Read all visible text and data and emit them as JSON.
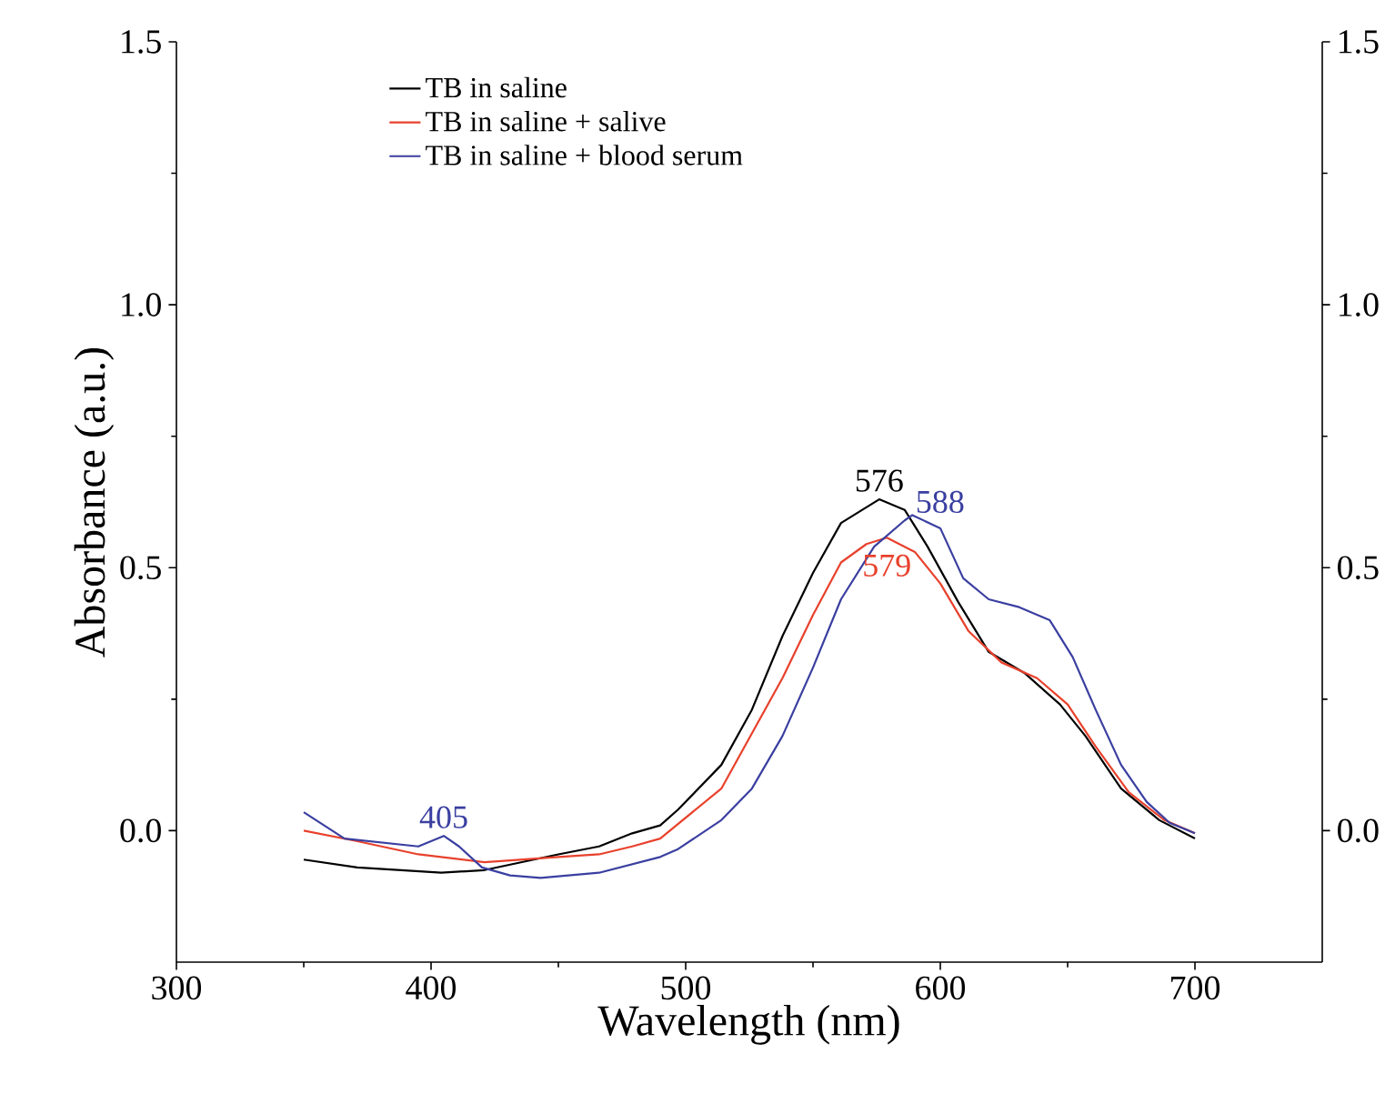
{
  "chart_data": {
    "type": "line",
    "xlabel": "Wavelength (nm)",
    "ylabel": "Absorbance (a.u.)",
    "xlim": [
      300,
      750
    ],
    "xticks": [
      300,
      400,
      500,
      600,
      700
    ],
    "ylim": [
      -0.25,
      1.5
    ],
    "yticks": [
      {
        "value": 0,
        "label": "0.0"
      },
      0.5,
      {
        "value": 1,
        "label": "1.0"
      },
      1.5
    ],
    "y2lim": [
      -0.25,
      1.5
    ],
    "y2ticks": [
      {
        "value": 0,
        "label": "0.0"
      },
      0.5,
      {
        "value": 1,
        "label": "1.0"
      },
      1.5
    ],
    "legend": "top left",
    "marker": "none",
    "line_style": "solid",
    "series": [
      {
        "name": "TB in saline",
        "color": "#000000",
        "x": [
          350,
          371,
          404,
          421,
          450,
          466,
          479,
          490,
          497,
          514,
          526,
          538,
          550,
          561,
          576,
          586,
          595,
          607,
          619,
          633,
          647,
          657,
          671,
          686,
          700
        ],
        "values": [
          -0.055,
          -0.07,
          -0.08,
          -0.075,
          -0.045,
          -0.03,
          -0.005,
          0.01,
          0.04,
          0.125,
          0.23,
          0.37,
          0.49,
          0.585,
          0.63,
          0.61,
          0.54,
          0.435,
          0.34,
          0.3,
          0.24,
          0.18,
          0.08,
          0.02,
          -0.015
        ]
      },
      {
        "name": "TB in saline + salive",
        "color": "#e8412c",
        "x": [
          350,
          371,
          395,
          421,
          450,
          466,
          479,
          490,
          514,
          538,
          550,
          561,
          571,
          579,
          590,
          600,
          611,
          624,
          638,
          650,
          661,
          674,
          688,
          700
        ],
        "values": [
          0.0,
          -0.02,
          -0.045,
          -0.06,
          -0.05,
          -0.045,
          -0.03,
          -0.015,
          0.08,
          0.29,
          0.41,
          0.51,
          0.545,
          0.557,
          0.53,
          0.47,
          0.38,
          0.32,
          0.29,
          0.24,
          0.16,
          0.073,
          0.02,
          -0.005
        ]
      },
      {
        "name": "TB in saline + blood serum",
        "color": "#3a3fa0",
        "x": [
          350,
          366,
          395,
          405,
          411,
          420,
          431,
          443,
          466,
          490,
          497,
          514,
          526,
          538,
          550,
          561,
          574,
          586,
          589,
          600,
          609,
          619,
          631,
          643,
          652,
          661,
          671,
          681,
          690,
          700
        ],
        "values": [
          0.035,
          -0.015,
          -0.03,
          -0.01,
          -0.03,
          -0.07,
          -0.085,
          -0.09,
          -0.08,
          -0.05,
          -0.035,
          0.02,
          0.08,
          0.18,
          0.31,
          0.44,
          0.54,
          0.59,
          0.6,
          0.575,
          0.48,
          0.44,
          0.425,
          0.4,
          0.33,
          0.23,
          0.125,
          0.055,
          0.015,
          -0.005
        ]
      }
    ],
    "annotations": [
      {
        "text": "576",
        "x": 576,
        "y": 0.63
      },
      {
        "text": "579",
        "x": 579,
        "y": 0.557
      },
      {
        "text": "588",
        "x": 588,
        "y": 0.6
      },
      {
        "text": "405",
        "x": 405,
        "y": -0.01
      }
    ]
  }
}
